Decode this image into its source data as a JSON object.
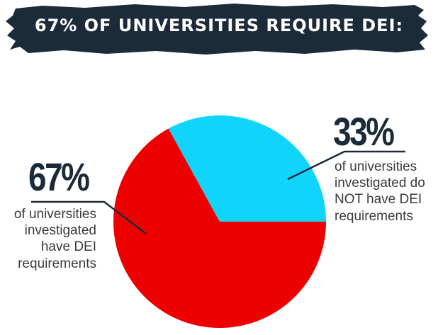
{
  "header": {
    "title": "67% OF UNIVERSITIES REQUIRE DEI:"
  },
  "chart_data": {
    "type": "pie",
    "title": "67% OF UNIVERSITIES REQUIRE DEI:",
    "slices": [
      {
        "label": "of universities investigated have DEI requirements",
        "value": 67,
        "percent_label": "67%",
        "color": "#ee0000"
      },
      {
        "label": "of universities investigated do NOT have DEI requirements",
        "value": 33,
        "percent_label": "33%",
        "color": "#11d4fb"
      }
    ]
  },
  "annotations": {
    "left": {
      "percent": "67%",
      "lines": [
        "of universities",
        "investigated",
        "have DEI",
        "requirements"
      ]
    },
    "right": {
      "percent": "33%",
      "lines": [
        "of universities",
        "investigated do",
        "NOT have DEI",
        "requirements"
      ]
    }
  },
  "colors": {
    "banner": "#1c2b3a",
    "text_dark": "#1c2b3a",
    "red": "#ee0000",
    "cyan": "#11d4fb"
  }
}
